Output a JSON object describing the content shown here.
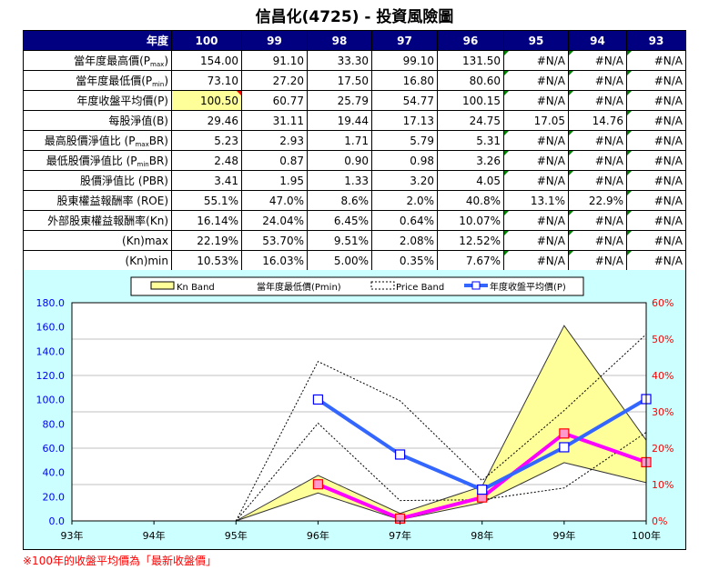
{
  "title": "信昌化(4725) -  投資風險圖",
  "table": {
    "header_label": "年度",
    "years": [
      "100",
      "99",
      "98",
      "97",
      "96",
      "95",
      "94",
      "93"
    ],
    "rows": [
      {
        "label": "當年度最高價(P",
        "sub": "max",
        "suffix": ")",
        "values": [
          "154.00",
          "91.10",
          "33.30",
          "99.10",
          "131.50",
          "#N/A",
          "#N/A",
          "#N/A"
        ]
      },
      {
        "label": "當年度最低價(P",
        "sub": "min",
        "suffix": ")",
        "values": [
          "73.10",
          "27.20",
          "17.50",
          "16.80",
          "80.60",
          "#N/A",
          "#N/A",
          "#N/A"
        ]
      },
      {
        "label": "年度收盤平均價(P)",
        "sub": "",
        "suffix": "",
        "values": [
          "100.50",
          "60.77",
          "25.79",
          "54.77",
          "100.15",
          "#N/A",
          "#N/A",
          "#N/A"
        ]
      },
      {
        "label": "每股淨值(B)",
        "sub": "",
        "suffix": "",
        "values": [
          "29.46",
          "31.11",
          "19.44",
          "17.13",
          "24.75",
          "17.05",
          "14.76",
          "#N/A"
        ]
      },
      {
        "label": "最高股價淨值比 (P",
        "sub": "max",
        "suffix": "BR)",
        "values": [
          "5.23",
          "2.93",
          "1.71",
          "5.79",
          "5.31",
          "#N/A",
          "#N/A",
          "#N/A"
        ]
      },
      {
        "label": "最低股價淨值比 (P",
        "sub": "min",
        "suffix": "BR)",
        "values": [
          "2.48",
          "0.87",
          "0.90",
          "0.98",
          "3.26",
          "#N/A",
          "#N/A",
          "#N/A"
        ]
      },
      {
        "label": "股價淨值比 (PBR)",
        "sub": "",
        "suffix": "",
        "values": [
          "3.41",
          "1.95",
          "1.33",
          "3.20",
          "4.05",
          "#N/A",
          "#N/A",
          "#N/A"
        ]
      },
      {
        "label": "股東權益報酬率 (ROE)",
        "sub": "",
        "suffix": "",
        "values": [
          "55.1%",
          "47.0%",
          "8.6%",
          "2.0%",
          "40.8%",
          "13.1%",
          "22.9%",
          "#N/A"
        ]
      },
      {
        "label": "外部股東權益報酬率(Kn)",
        "sub": "",
        "suffix": "",
        "values": [
          "16.14%",
          "24.04%",
          "6.45%",
          "0.64%",
          "10.07%",
          "#N/A",
          "#N/A",
          "#N/A"
        ]
      },
      {
        "label": "(Kn)max",
        "sub": "",
        "suffix": "",
        "values": [
          "22.19%",
          "53.70%",
          "9.51%",
          "2.08%",
          "12.52%",
          "#N/A",
          "#N/A",
          "#N/A"
        ]
      },
      {
        "label": "(Kn)min",
        "sub": "",
        "suffix": "",
        "values": [
          "10.53%",
          "16.03%",
          "5.00%",
          "0.35%",
          "7.67%",
          "#N/A",
          "#N/A",
          "#N/A"
        ]
      }
    ]
  },
  "colors": {
    "header_bg": "#000080",
    "panel_bg": "#ccffff",
    "band_fill": "#ffff99",
    "blue": "#3366ff",
    "magenta": "#ff00ff",
    "left_axis": "#0000ff",
    "right_axis": "#ff0000"
  },
  "chart_data": {
    "type": "line",
    "x": [
      "93年",
      "94年",
      "95年",
      "96年",
      "97年",
      "98年",
      "99年",
      "100年"
    ],
    "left_axis": {
      "ylim": [
        0,
        180
      ],
      "ticks": [
        "0.0",
        "20.0",
        "40.0",
        "60.0",
        "80.0",
        "100.0",
        "120.0",
        "140.0",
        "160.0",
        "180.0"
      ]
    },
    "right_axis": {
      "ylim": [
        0,
        60
      ],
      "ticks": [
        "0%",
        "10%",
        "20%",
        "30%",
        "40%",
        "50%",
        "60%"
      ]
    },
    "legend": [
      "Kn Band",
      "當年度最低價(Pmin)",
      "Price Band",
      "年度收盤平均價(P)"
    ],
    "legend_position": "top",
    "series": [
      {
        "name": "Kn max",
        "axis": "right",
        "values": [
          null,
          null,
          0,
          12.52,
          2.08,
          9.51,
          53.7,
          22.19
        ]
      },
      {
        "name": "Kn min",
        "axis": "right",
        "values": [
          null,
          null,
          0,
          7.67,
          0.35,
          5.0,
          16.03,
          10.53
        ]
      },
      {
        "name": "Pmax",
        "axis": "left",
        "values": [
          null,
          null,
          0,
          131.5,
          99.1,
          33.3,
          91.1,
          154.0
        ]
      },
      {
        "name": "Pmin",
        "axis": "left",
        "values": [
          null,
          null,
          0,
          80.6,
          16.8,
          17.5,
          27.2,
          73.1
        ]
      },
      {
        "name": "Kn",
        "axis": "right",
        "values": [
          null,
          null,
          null,
          10.07,
          0.64,
          6.45,
          24.04,
          16.14
        ]
      },
      {
        "name": "P",
        "axis": "left",
        "values": [
          null,
          null,
          null,
          100.15,
          54.77,
          25.79,
          60.77,
          100.5
        ]
      }
    ]
  },
  "note": "※100年的收盤平均價為「最新收盤價」"
}
